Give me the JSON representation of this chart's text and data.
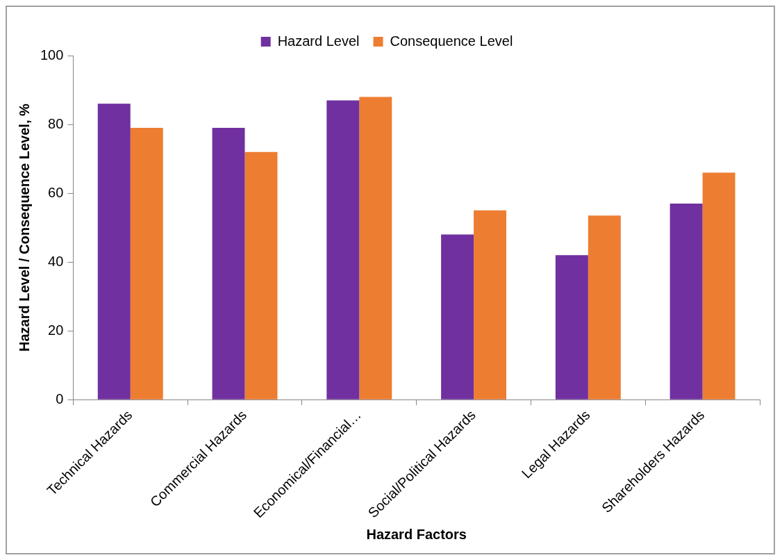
{
  "chart_data": {
    "type": "bar",
    "xlabel": "Hazard Factors",
    "ylabel": "Hazard Level / Consequence Level, %",
    "categories": [
      "Technical Hazards",
      "Commercial Hazards",
      "Economical/Financial…",
      "Social/Political Hazards",
      "Legal Hazards",
      "Shareholders Hazards"
    ],
    "series": [
      {
        "name": "Hazard Level",
        "color": "#7030a0",
        "values": [
          86,
          79,
          87,
          48,
          42,
          57
        ]
      },
      {
        "name": "Consequence Level",
        "color": "#ed7d31",
        "values": [
          79,
          72,
          88,
          55,
          53.5,
          66
        ]
      }
    ],
    "ylim": [
      0,
      100
    ],
    "yticks": [
      0,
      20,
      40,
      60,
      80,
      100
    ],
    "grid": false,
    "legend": "top"
  }
}
